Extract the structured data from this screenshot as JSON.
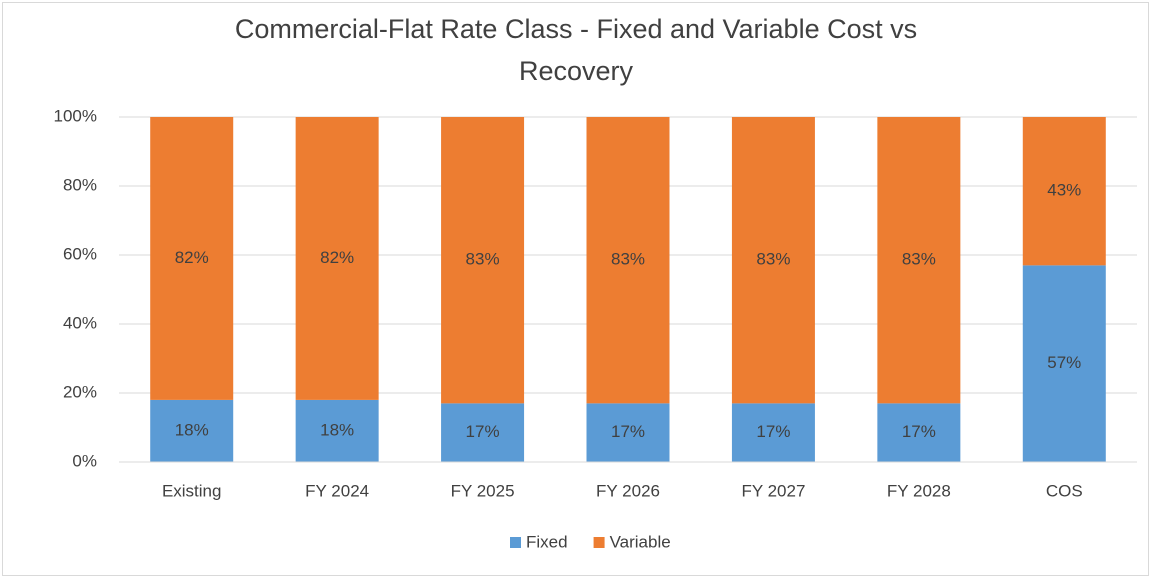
{
  "chart_data": {
    "type": "stacked_bar",
    "title": "Commercial-Flat Rate Class - Fixed and Variable Cost vs Recovery",
    "categories": [
      "Existing",
      "FY 2024",
      "FY 2025",
      "FY 2026",
      "FY 2027",
      "FY 2028",
      "COS"
    ],
    "series": [
      {
        "name": "Fixed",
        "color": "#5b9bd5",
        "values": [
          18,
          18,
          17,
          17,
          17,
          17,
          57
        ],
        "value_labels": [
          "18%",
          "18%",
          "17%",
          "17%",
          "17%",
          "17%",
          "57%"
        ]
      },
      {
        "name": "Variable",
        "color": "#ed7d31",
        "values": [
          82,
          82,
          83,
          83,
          83,
          83,
          43
        ],
        "value_labels": [
          "82%",
          "82%",
          "83%",
          "83%",
          "83%",
          "83%",
          "43%"
        ]
      }
    ],
    "ylim": [
      0,
      100
    ],
    "yticks": [
      {
        "value": 0,
        "label": "0%"
      },
      {
        "value": 20,
        "label": "20%"
      },
      {
        "value": 40,
        "label": "40%"
      },
      {
        "value": 60,
        "label": "60%"
      },
      {
        "value": 80,
        "label": "80%"
      },
      {
        "value": 100,
        "label": "100%"
      }
    ],
    "grid": true,
    "legend": "bottom"
  }
}
